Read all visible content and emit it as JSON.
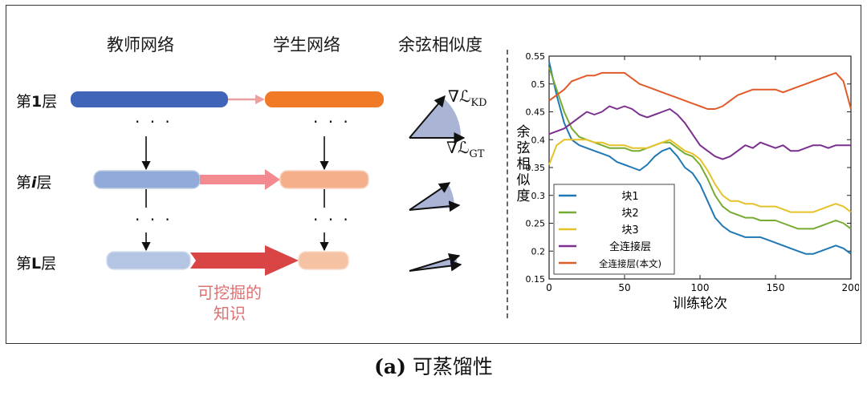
{
  "diagram": {
    "headers": {
      "teacher": "教师网络",
      "student": "学生网络",
      "cosine": "余弦相似度"
    },
    "layers": [
      {
        "label_pre": "第",
        "label_em": "1",
        "label_post": "层"
      },
      {
        "label_pre": "第",
        "label_em": "i",
        "label_post": "层"
      },
      {
        "label_pre": "第",
        "label_em": "L",
        "label_post": "层"
      }
    ],
    "knowledge_label": "可挖掘的\n知识",
    "grad_kd": "∇ℒ",
    "grad_kd_sub": "KD",
    "grad_gt": "∇ℒ",
    "grad_gt_sub": "GT",
    "colors": {
      "teacher_l1": "#3f64b8",
      "student_l1": "#f07a25",
      "teacher_li": "#92aad8",
      "student_li": "#f4b08a",
      "teacher_lL": "#b4c5e4",
      "student_lL": "#f6c2a4",
      "arrow_l1": "#e8a0a0",
      "arrow_li": "#f28a90",
      "arrow_lL": "#d94545"
    }
  },
  "caption": {
    "prefix": "(a)",
    "text": " 可蒸馏性"
  },
  "chart_data": {
    "type": "line",
    "ylabel": "余弦相似度",
    "xlabel": "训练轮次",
    "xlim": [
      0,
      200
    ],
    "ylim": [
      0.15,
      0.55
    ],
    "xticks": [
      0,
      50,
      100,
      150,
      200
    ],
    "yticks": [
      0.15,
      0.2,
      0.25,
      0.3,
      0.35,
      0.4,
      0.45,
      0.5,
      0.55
    ],
    "legend_position": "bottom-left",
    "x": [
      0,
      5,
      10,
      15,
      20,
      25,
      30,
      35,
      40,
      45,
      50,
      55,
      60,
      65,
      70,
      75,
      80,
      85,
      90,
      95,
      100,
      105,
      110,
      115,
      120,
      125,
      130,
      135,
      140,
      145,
      150,
      155,
      160,
      165,
      170,
      175,
      180,
      185,
      190,
      195,
      200
    ],
    "series": [
      {
        "name": "块1",
        "color": "#1f77b4",
        "values": [
          0.54,
          0.48,
          0.43,
          0.4,
          0.39,
          0.385,
          0.38,
          0.375,
          0.37,
          0.36,
          0.355,
          0.35,
          0.345,
          0.355,
          0.37,
          0.38,
          0.385,
          0.37,
          0.35,
          0.34,
          0.32,
          0.29,
          0.26,
          0.245,
          0.235,
          0.23,
          0.225,
          0.225,
          0.225,
          0.22,
          0.215,
          0.21,
          0.205,
          0.2,
          0.195,
          0.195,
          0.2,
          0.205,
          0.21,
          0.205,
          0.195
        ]
      },
      {
        "name": "块2",
        "color": "#77ab32",
        "values": [
          0.53,
          0.49,
          0.45,
          0.42,
          0.405,
          0.4,
          0.395,
          0.39,
          0.385,
          0.385,
          0.385,
          0.38,
          0.38,
          0.385,
          0.39,
          0.395,
          0.395,
          0.385,
          0.375,
          0.37,
          0.355,
          0.33,
          0.3,
          0.28,
          0.27,
          0.265,
          0.26,
          0.26,
          0.255,
          0.255,
          0.255,
          0.25,
          0.245,
          0.24,
          0.24,
          0.24,
          0.245,
          0.25,
          0.255,
          0.25,
          0.24
        ]
      },
      {
        "name": "块3",
        "color": "#e6c229",
        "values": [
          0.355,
          0.39,
          0.4,
          0.4,
          0.4,
          0.4,
          0.395,
          0.395,
          0.39,
          0.39,
          0.39,
          0.385,
          0.385,
          0.385,
          0.39,
          0.395,
          0.4,
          0.39,
          0.38,
          0.375,
          0.365,
          0.345,
          0.32,
          0.3,
          0.29,
          0.29,
          0.285,
          0.285,
          0.28,
          0.28,
          0.28,
          0.275,
          0.27,
          0.27,
          0.27,
          0.27,
          0.275,
          0.28,
          0.285,
          0.28,
          0.27
        ]
      },
      {
        "name": "全连接层",
        "color": "#7b2f8e",
        "values": [
          0.41,
          0.415,
          0.42,
          0.43,
          0.44,
          0.45,
          0.445,
          0.45,
          0.46,
          0.455,
          0.46,
          0.455,
          0.445,
          0.44,
          0.445,
          0.45,
          0.455,
          0.445,
          0.43,
          0.41,
          0.39,
          0.38,
          0.37,
          0.365,
          0.37,
          0.38,
          0.39,
          0.385,
          0.395,
          0.39,
          0.385,
          0.39,
          0.38,
          0.38,
          0.385,
          0.39,
          0.39,
          0.385,
          0.39,
          0.39,
          0.39
        ]
      },
      {
        "name": "全连接层(本文)",
        "color": "#e05a2a",
        "values": [
          0.47,
          0.48,
          0.49,
          0.505,
          0.51,
          0.515,
          0.515,
          0.52,
          0.52,
          0.52,
          0.52,
          0.51,
          0.5,
          0.495,
          0.49,
          0.485,
          0.48,
          0.475,
          0.47,
          0.465,
          0.46,
          0.455,
          0.455,
          0.46,
          0.47,
          0.48,
          0.485,
          0.49,
          0.49,
          0.49,
          0.49,
          0.485,
          0.49,
          0.495,
          0.5,
          0.505,
          0.51,
          0.515,
          0.52,
          0.505,
          0.455
        ]
      }
    ]
  }
}
